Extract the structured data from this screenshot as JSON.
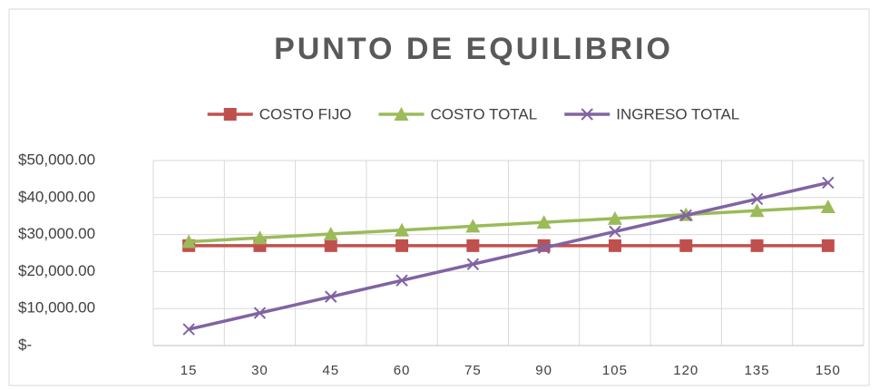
{
  "chart_data": {
    "type": "line",
    "title": "PUNTO DE EQUILIBRIO",
    "categories": [
      "15",
      "30",
      "45",
      "60",
      "75",
      "90",
      "105",
      "120",
      "135",
      "150"
    ],
    "series": [
      {
        "name": "COSTO FIJO",
        "color": "#c0504d",
        "marker": "square",
        "values": [
          27000,
          27000,
          27000,
          27000,
          27000,
          27000,
          27000,
          27000,
          27000,
          27000
        ]
      },
      {
        "name": "COSTO TOTAL",
        "color": "#9bbb59",
        "marker": "triangle",
        "values": [
          28050,
          29100,
          30150,
          31200,
          32250,
          33300,
          34350,
          35400,
          36450,
          37500
        ]
      },
      {
        "name": "INGRESO TOTAL",
        "color": "#8064a2",
        "marker": "x",
        "values": [
          4400,
          8800,
          13200,
          17600,
          22000,
          26400,
          30800,
          35200,
          39600,
          44000
        ]
      }
    ],
    "ylim": [
      0,
      50000
    ],
    "yticks": [
      {
        "value": 0,
        "label": "$-"
      },
      {
        "value": 10000,
        "label": "$10,000.00"
      },
      {
        "value": 20000,
        "label": "$20,000.00"
      },
      {
        "value": 30000,
        "label": "$30,000.00"
      },
      {
        "value": 40000,
        "label": "$40,000.00"
      },
      {
        "value": 50000,
        "label": "$50,000.00"
      }
    ],
    "grid": true,
    "legend": "top"
  }
}
